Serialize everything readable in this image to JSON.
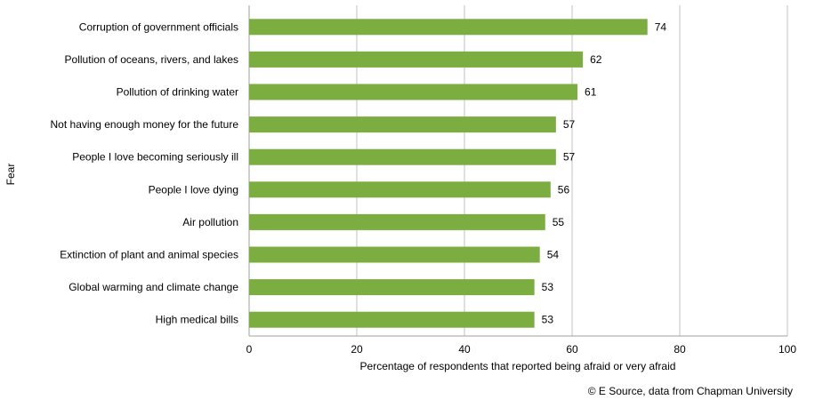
{
  "chart_data": {
    "type": "bar",
    "orientation": "horizontal",
    "categories": [
      "Corruption of government officials",
      "Pollution of oceans, rivers, and lakes",
      "Pollution of drinking water",
      "Not having enough money for the future",
      "People I love becoming seriously ill",
      "People I love dying",
      "Air pollution",
      "Extinction of plant and animal species",
      "Global warming and climate change",
      "High medical bills"
    ],
    "values": [
      74,
      62,
      61,
      57,
      57,
      56,
      55,
      54,
      53,
      53
    ],
    "xlabel": "Percentage of respondents that reported being afraid or very afraid",
    "ylabel": "Fear",
    "xlim": [
      0,
      100
    ],
    "xticks": [
      0,
      20,
      40,
      60,
      80,
      100
    ],
    "grid": "vertical",
    "legend": "none",
    "bar_color": "#7cad41",
    "grid_color": "#c0c0c0",
    "data_labels": true
  },
  "source": "© E Source, data from Chapman University"
}
